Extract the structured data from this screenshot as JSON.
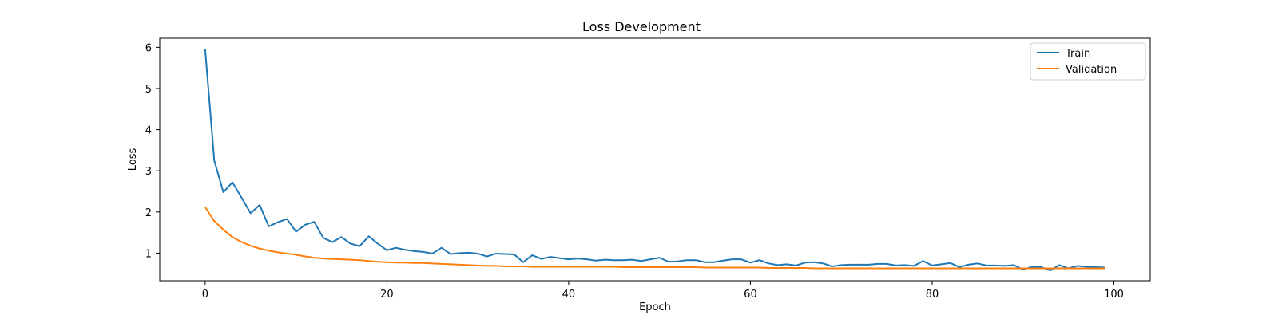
{
  "chart_data": {
    "type": "line",
    "title": "Loss Development",
    "xlabel": "Epoch",
    "ylabel": "Loss",
    "xlim": [
      -5,
      104
    ],
    "ylim": [
      0.33,
      6.22
    ],
    "xticks": [
      0,
      20,
      40,
      60,
      80,
      100
    ],
    "yticks": [
      1,
      2,
      3,
      4,
      5,
      6
    ],
    "grid": false,
    "legend_position": "top-right",
    "series": [
      {
        "name": "Train",
        "color": "#1f77b4",
        "x": [
          0,
          1,
          2,
          3,
          4,
          5,
          6,
          7,
          8,
          9,
          10,
          11,
          12,
          13,
          14,
          15,
          16,
          17,
          18,
          19,
          20,
          21,
          22,
          23,
          24,
          25,
          26,
          27,
          28,
          29,
          30,
          31,
          32,
          33,
          34,
          35,
          36,
          37,
          38,
          39,
          40,
          41,
          42,
          43,
          44,
          45,
          46,
          47,
          48,
          49,
          50,
          51,
          52,
          53,
          54,
          55,
          56,
          57,
          58,
          59,
          60,
          61,
          62,
          63,
          64,
          65,
          66,
          67,
          68,
          69,
          70,
          71,
          72,
          73,
          74,
          75,
          76,
          77,
          78,
          79,
          80,
          81,
          82,
          83,
          84,
          85,
          86,
          87,
          88,
          89,
          90,
          91,
          92,
          93,
          94,
          95,
          96,
          97,
          98,
          99
        ],
        "values": [
          5.95,
          3.25,
          2.48,
          2.72,
          2.35,
          1.97,
          2.17,
          1.65,
          1.75,
          1.83,
          1.52,
          1.69,
          1.76,
          1.37,
          1.27,
          1.39,
          1.23,
          1.17,
          1.41,
          1.23,
          1.07,
          1.13,
          1.08,
          1.05,
          1.03,
          0.99,
          1.13,
          0.98,
          1.0,
          1.01,
          0.99,
          0.92,
          0.99,
          0.98,
          0.97,
          0.78,
          0.95,
          0.86,
          0.91,
          0.88,
          0.85,
          0.87,
          0.85,
          0.82,
          0.84,
          0.83,
          0.83,
          0.84,
          0.81,
          0.85,
          0.89,
          0.79,
          0.8,
          0.83,
          0.83,
          0.78,
          0.78,
          0.82,
          0.85,
          0.85,
          0.77,
          0.83,
          0.75,
          0.71,
          0.73,
          0.7,
          0.77,
          0.78,
          0.75,
          0.68,
          0.71,
          0.72,
          0.72,
          0.72,
          0.74,
          0.74,
          0.7,
          0.71,
          0.69,
          0.81,
          0.7,
          0.73,
          0.76,
          0.66,
          0.72,
          0.75,
          0.7,
          0.7,
          0.69,
          0.71,
          0.6,
          0.67,
          0.66,
          0.58,
          0.71,
          0.63,
          0.69,
          0.67,
          0.66,
          0.65
        ]
      },
      {
        "name": "Validation",
        "color": "#ff7f0e",
        "x": [
          0,
          1,
          2,
          3,
          4,
          5,
          6,
          7,
          8,
          9,
          10,
          11,
          12,
          13,
          14,
          15,
          16,
          17,
          18,
          19,
          20,
          21,
          22,
          23,
          24,
          25,
          26,
          27,
          28,
          29,
          30,
          31,
          32,
          33,
          34,
          35,
          36,
          37,
          38,
          39,
          40,
          41,
          42,
          43,
          44,
          45,
          46,
          47,
          48,
          49,
          50,
          51,
          52,
          53,
          54,
          55,
          56,
          57,
          58,
          59,
          60,
          61,
          62,
          63,
          64,
          65,
          66,
          67,
          68,
          69,
          70,
          71,
          72,
          73,
          74,
          75,
          76,
          77,
          78,
          79,
          80,
          81,
          82,
          83,
          84,
          85,
          86,
          87,
          88,
          89,
          90,
          91,
          92,
          93,
          94,
          95,
          96,
          97,
          98,
          99
        ],
        "values": [
          2.12,
          1.78,
          1.57,
          1.39,
          1.27,
          1.18,
          1.11,
          1.06,
          1.02,
          0.99,
          0.96,
          0.92,
          0.89,
          0.87,
          0.86,
          0.85,
          0.84,
          0.83,
          0.81,
          0.79,
          0.78,
          0.77,
          0.77,
          0.76,
          0.76,
          0.75,
          0.74,
          0.73,
          0.72,
          0.71,
          0.7,
          0.69,
          0.69,
          0.68,
          0.68,
          0.68,
          0.67,
          0.67,
          0.67,
          0.67,
          0.67,
          0.67,
          0.67,
          0.67,
          0.67,
          0.67,
          0.66,
          0.66,
          0.66,
          0.66,
          0.66,
          0.66,
          0.66,
          0.66,
          0.66,
          0.65,
          0.65,
          0.65,
          0.65,
          0.65,
          0.65,
          0.65,
          0.64,
          0.64,
          0.64,
          0.64,
          0.64,
          0.63,
          0.63,
          0.63,
          0.63,
          0.63,
          0.63,
          0.63,
          0.63,
          0.63,
          0.63,
          0.63,
          0.63,
          0.63,
          0.63,
          0.63,
          0.63,
          0.63,
          0.63,
          0.63,
          0.63,
          0.63,
          0.63,
          0.63,
          0.63,
          0.63,
          0.63,
          0.63,
          0.63,
          0.63,
          0.63,
          0.63,
          0.63,
          0.63
        ]
      }
    ]
  }
}
